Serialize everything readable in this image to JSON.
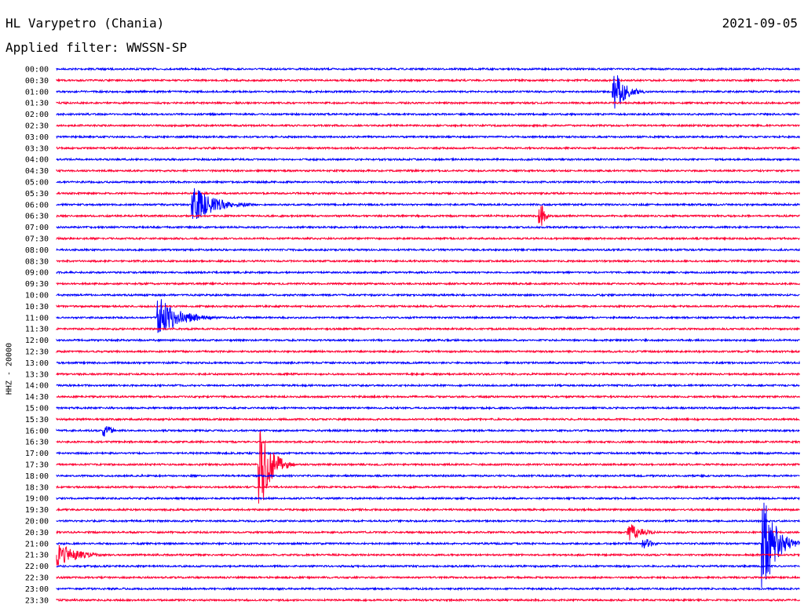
{
  "header": {
    "station": "HL Varypetro (Chania)",
    "date": "2021-09-05",
    "filter": "Applied filter: WWSSN-SP",
    "channel": "HHZ - 20000"
  },
  "colors": {
    "odd_hour": "#0000ff",
    "half_hour": "#ff0033"
  },
  "chart_data": {
    "type": "line",
    "title": "HL Varypetro (Chania)",
    "subtitle": "Applied filter: WWSSN-SP",
    "ylabel": "HHZ - 20000",
    "y_tick_labels": [
      "00:00",
      "00:30",
      "01:00",
      "01:30",
      "02:00",
      "02:30",
      "03:00",
      "03:30",
      "04:00",
      "04:30",
      "05:00",
      "05:30",
      "06:00",
      "06:30",
      "07:00",
      "07:30",
      "08:00",
      "08:30",
      "09:00",
      "09:30",
      "10:00",
      "10:30",
      "11:00",
      "11:30",
      "12:00",
      "12:30",
      "13:00",
      "13:30",
      "14:00",
      "14:30",
      "15:00",
      "15:30",
      "16:00",
      "16:30",
      "17:00",
      "17:30",
      "18:00",
      "18:30",
      "19:00",
      "19:30",
      "20:00",
      "20:30",
      "21:00",
      "21:30",
      "22:00",
      "22:30",
      "23:00",
      "23:30"
    ],
    "series_colors": [
      "blue",
      "red"
    ],
    "events": [
      {
        "row": 2,
        "minute": 22.5,
        "amplitude": 24,
        "duration": 1.4
      },
      {
        "row": 12,
        "minute": 5.5,
        "amplitude": 22,
        "duration": 2.8
      },
      {
        "row": 13,
        "minute": 19.5,
        "amplitude": 16,
        "duration": 0.4
      },
      {
        "row": 22,
        "minute": 4.1,
        "amplitude": 24,
        "duration": 2.6
      },
      {
        "row": 32,
        "minute": 1.9,
        "amplitude": 8,
        "duration": 0.8
      },
      {
        "row": 35,
        "minute": 8.2,
        "amplitude": 50,
        "duration": 1.4
      },
      {
        "row": 41,
        "minute": 23.1,
        "amplitude": 11,
        "duration": 1.6
      },
      {
        "row": 42,
        "minute": 23.7,
        "amplitude": 7,
        "duration": 1.0
      },
      {
        "row": 43,
        "minute": 0.0,
        "amplitude": 14,
        "duration": 2.6
      },
      {
        "row": 42,
        "minute": 28.5,
        "amplitude": 60,
        "duration": 1.5
      }
    ]
  }
}
